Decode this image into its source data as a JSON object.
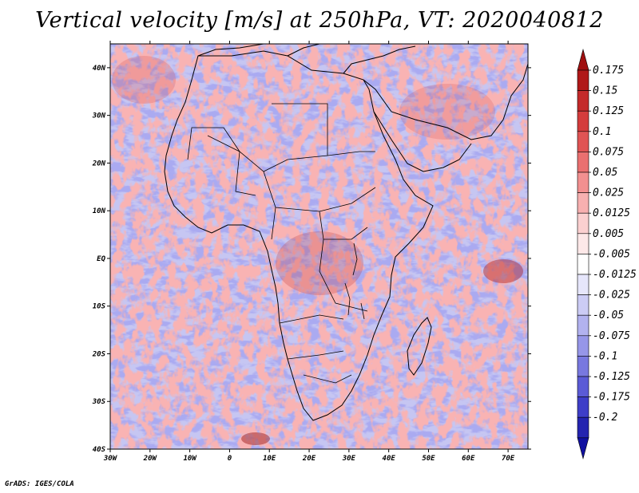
{
  "title": "Vertical velocity [m/s] at 250hPa, VT: 2020040812",
  "footer": "GrADS: IGES/COLA",
  "map": {
    "projection": "lat-lon",
    "lon_range": [
      -30,
      75
    ],
    "lat_range": [
      -40,
      45
    ],
    "lat_ticks": [
      {
        "value": 40,
        "label": "40N"
      },
      {
        "value": 30,
        "label": "30N"
      },
      {
        "value": 20,
        "label": "20N"
      },
      {
        "value": 10,
        "label": "10N"
      },
      {
        "value": 0,
        "label": "EQ"
      },
      {
        "value": -10,
        "label": "10S"
      },
      {
        "value": -20,
        "label": "20S"
      },
      {
        "value": -30,
        "label": "30S"
      },
      {
        "value": -40,
        "label": "40S"
      }
    ],
    "lon_ticks": [
      {
        "value": -30,
        "label": "30W"
      },
      {
        "value": -20,
        "label": "20W"
      },
      {
        "value": -10,
        "label": "10W"
      },
      {
        "value": 0,
        "label": "0"
      },
      {
        "value": 10,
        "label": "10E"
      },
      {
        "value": 20,
        "label": "20E"
      },
      {
        "value": 30,
        "label": "30E"
      },
      {
        "value": 40,
        "label": "40E"
      },
      {
        "value": 50,
        "label": "50E"
      },
      {
        "value": 60,
        "label": "60E"
      },
      {
        "value": 70,
        "label": "70E"
      }
    ],
    "field_colors": {
      "positive": "#e8595a",
      "negative": "#5b5bdc",
      "neutral": "#ffffff"
    }
  },
  "colorbar": {
    "levels": [
      {
        "label": "0.175",
        "color": "#b01818"
      },
      {
        "label": "0.15",
        "color": "#c42a2a"
      },
      {
        "label": "0.125",
        "color": "#d43c3c"
      },
      {
        "label": "0.1",
        "color": "#e05454"
      },
      {
        "label": "0.075",
        "color": "#ea7070"
      },
      {
        "label": "0.05",
        "color": "#f29090"
      },
      {
        "label": "0.025",
        "color": "#f7b0b0"
      },
      {
        "label": "0.0125",
        "color": "#fbd0d0"
      },
      {
        "label": "0.005",
        "color": "#fde8e8"
      },
      {
        "label": "-0.005",
        "color": "#ffffff"
      },
      {
        "label": "-0.0125",
        "color": "#e6e6fb"
      },
      {
        "label": "-0.025",
        "color": "#ccccf5"
      },
      {
        "label": "-0.05",
        "color": "#b2b2ef"
      },
      {
        "label": "-0.075",
        "color": "#9696e8"
      },
      {
        "label": "-0.1",
        "color": "#7878df"
      },
      {
        "label": "-0.125",
        "color": "#5b5bd6"
      },
      {
        "label": "-0.175",
        "color": "#3e3ec8"
      },
      {
        "label": "-0.2",
        "color": "#2424b0"
      }
    ],
    "top_triangle_color": "#a01010",
    "bottom_triangle_color": "#1010a0",
    "mid_band_color": "#ffffff"
  }
}
